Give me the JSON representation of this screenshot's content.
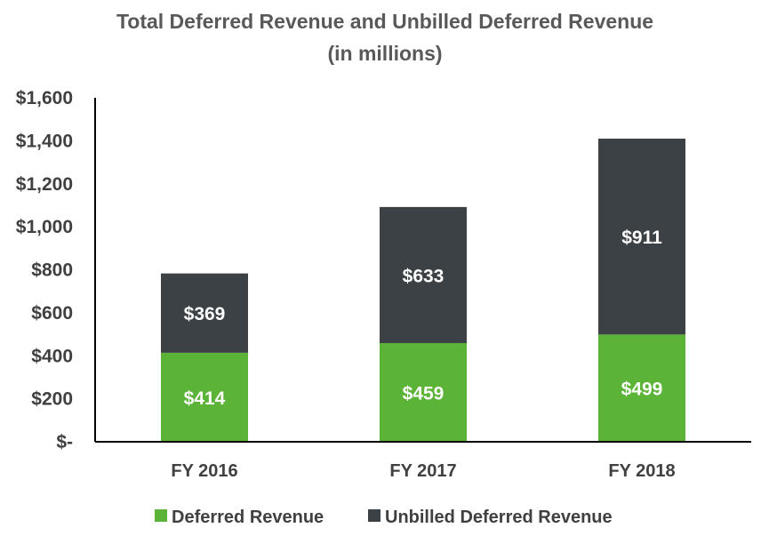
{
  "chart_data": {
    "type": "bar",
    "stacked": true,
    "title": "Total Deferred Revenue and Unbilled Deferred Revenue",
    "subtitle": "(in millions)",
    "xlabel": "",
    "ylabel": "",
    "categories": [
      "FY 2016",
      "FY 2017",
      "FY 2018"
    ],
    "ylim": [
      0,
      1600
    ],
    "yticks": [
      0,
      200,
      400,
      600,
      800,
      1000,
      1200,
      1400,
      1600
    ],
    "ytick_labels": [
      "$-",
      "$200",
      "$400",
      "$600",
      "$800",
      "$1,000",
      "$1,200",
      "$1,400",
      "$1,600"
    ],
    "grid": false,
    "legend_position": "bottom",
    "series": [
      {
        "name": "Deferred Revenue",
        "color": "#5BB337",
        "values": [
          414,
          459,
          499
        ],
        "labels": [
          "$414",
          "$459",
          "$499"
        ]
      },
      {
        "name": "Unbilled Deferred Revenue",
        "color": "#3B4144",
        "values": [
          369,
          633,
          911
        ],
        "labels": [
          "$369",
          "$633",
          "$911"
        ]
      }
    ]
  }
}
